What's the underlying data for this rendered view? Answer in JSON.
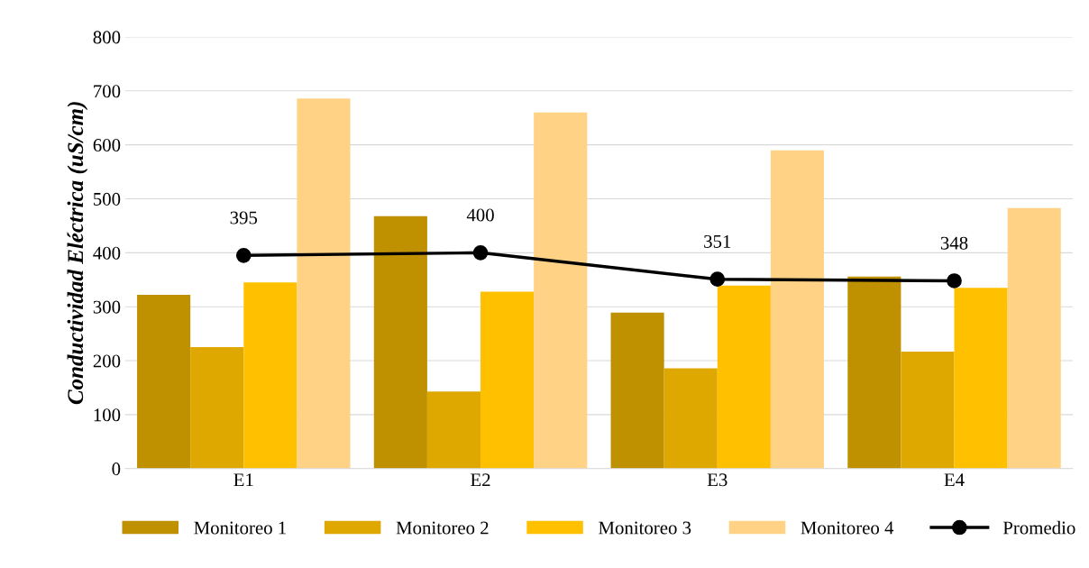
{
  "chart_data": {
    "type": "bar",
    "ylabel": "Conductividad Eléctrica (uS/cm)",
    "categories": [
      "E1",
      "E2",
      "E3",
      "E4"
    ],
    "series": [
      {
        "name": "Monitoreo 1",
        "color": "#bf9000",
        "values": [
          322,
          468,
          289,
          356
        ]
      },
      {
        "name": "Monitoreo 2",
        "color": "#dfa800",
        "values": [
          225,
          143,
          186,
          217
        ]
      },
      {
        "name": "Monitoreo 3",
        "color": "#ffc000",
        "values": [
          345,
          328,
          339,
          335
        ]
      },
      {
        "name": "Monitoreo 4",
        "color": "#ffd285",
        "values": [
          686,
          660,
          590,
          483
        ]
      },
      {
        "name": "Promedio",
        "type": "line",
        "color": "#000000",
        "values": [
          395,
          400,
          351,
          348
        ],
        "marker": "circle",
        "data_labels": true
      }
    ],
    "ylim": [
      0,
      800
    ],
    "yticks": [
      0,
      100,
      200,
      300,
      400,
      500,
      600,
      700,
      800
    ],
    "grid": "y",
    "legend": "bottom"
  }
}
